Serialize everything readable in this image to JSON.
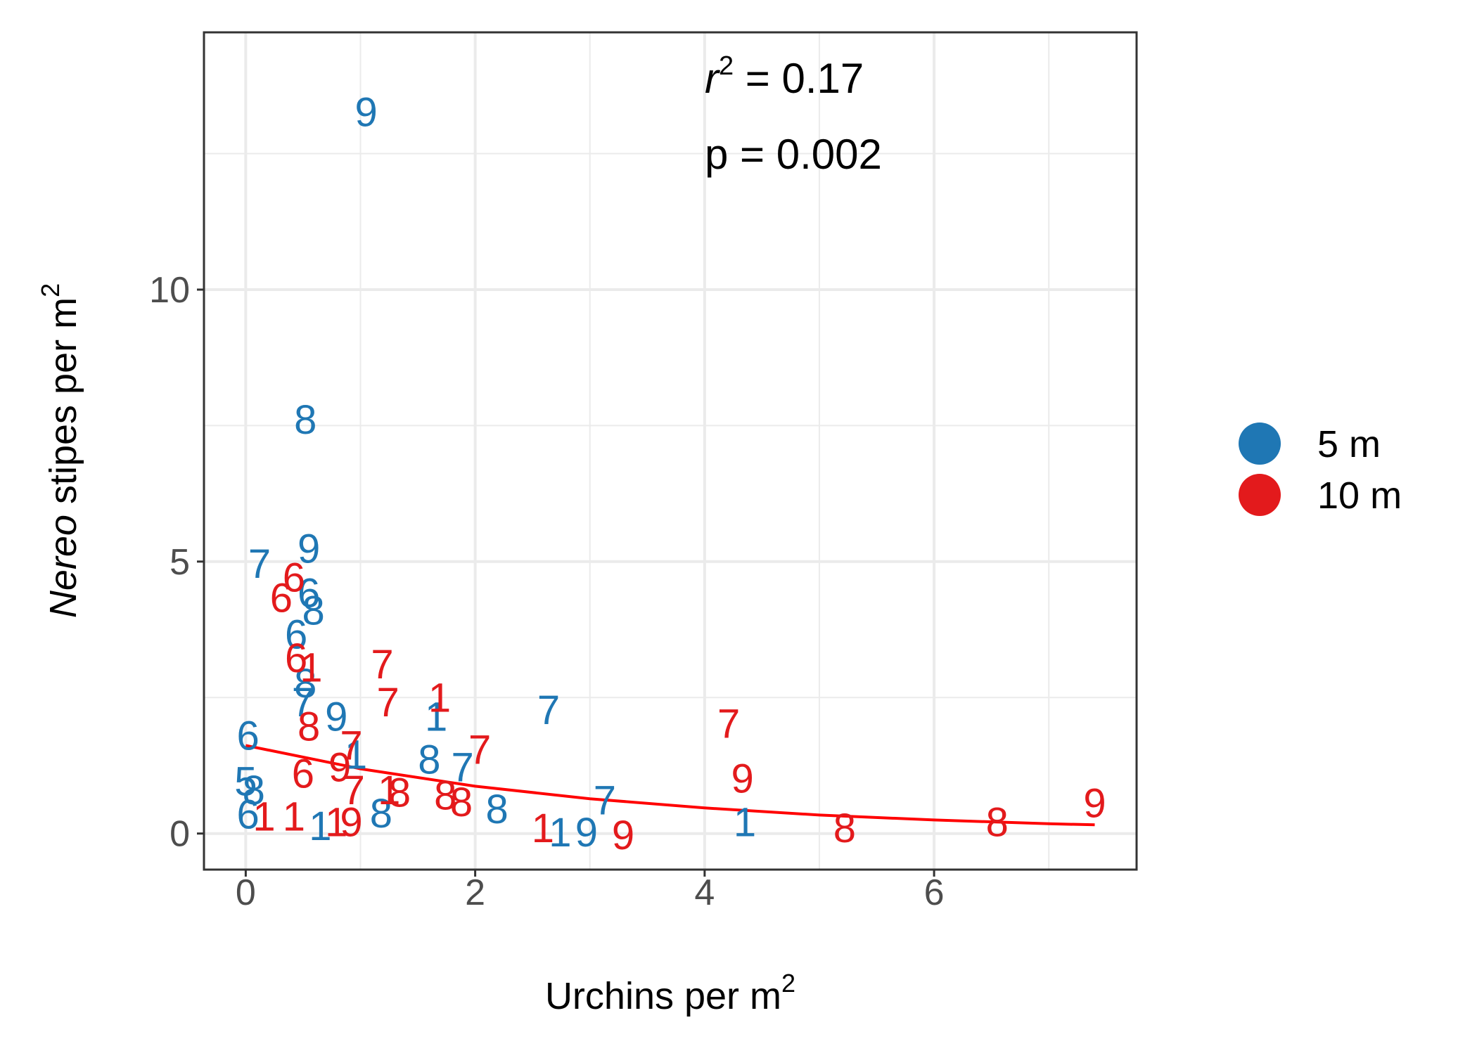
{
  "chart_data": {
    "type": "scatter",
    "x_label": {
      "text": "Urchins per m",
      "superscript": "2"
    },
    "y_label": {
      "italic": "Nereo",
      "text": " stipes per m",
      "superscript": "2"
    },
    "annotations": [
      {
        "italic": "r",
        "superscript": "2",
        "text": " = 0.17"
      },
      {
        "text": "p = 0.002"
      }
    ],
    "xlim": [
      -0.364,
      7.765
    ],
    "ylim": [
      -0.663,
      14.73
    ],
    "xticks": [
      0,
      2,
      4,
      6
    ],
    "yticks": [
      0,
      5,
      10
    ],
    "x_minor_ticks": [
      1,
      3,
      5,
      7
    ],
    "y_minor_ticks": [
      2.5,
      7.5,
      12.5
    ],
    "grid": true,
    "legend": "right",
    "series": [
      {
        "name": "5 m",
        "color": "#1f77b4",
        "x": [
          1.05,
          0.52,
          0.12,
          0.55,
          0.55,
          0.59,
          0.44,
          0.52,
          0.5,
          0.79,
          1.66,
          2.64,
          0.02,
          0.96,
          1.6,
          1.89,
          0,
          0.07,
          0.02,
          0.65,
          1.18,
          2.19,
          3.13,
          2.74,
          2.97,
          4.35
        ],
        "values": [
          13.26,
          7.61,
          4.96,
          5.24,
          4.42,
          4.1,
          3.66,
          2.76,
          2.41,
          2.15,
          2.15,
          2.27,
          1.8,
          1.45,
          1.36,
          1.22,
          0.96,
          0.8,
          0.35,
          0.14,
          0.37,
          0.45,
          0.61,
          0.02,
          0.02,
          0.21
        ],
        "labels": [
          "9",
          "8",
          "7",
          "9",
          "6",
          "8",
          "6",
          "8",
          "7",
          "9",
          "1",
          "7",
          "6",
          "1",
          "8",
          "7",
          "5",
          "8",
          "6",
          "1",
          "8",
          "8",
          "7",
          "1",
          "9",
          "1"
        ]
      },
      {
        "name": "10 m",
        "color": "#e31a1c",
        "x": [
          0.42,
          0.31,
          0.44,
          0.57,
          1.19,
          1.69,
          1.24,
          0.55,
          0.92,
          2.04,
          4.21,
          0.5,
          0.82,
          0.94,
          1.25,
          1.34,
          1.74,
          1.88,
          4.33,
          0.16,
          0.42,
          0.79,
          0.92,
          2.59,
          3.29,
          5.22,
          6.55,
          7.4
        ],
        "values": [
          4.71,
          4.33,
          3.23,
          3.05,
          3.11,
          2.5,
          2.41,
          1.97,
          1.62,
          1.54,
          2.02,
          1.1,
          1.22,
          0.8,
          0.8,
          0.75,
          0.7,
          0.58,
          1.01,
          0.31,
          0.31,
          0.21,
          0.21,
          0.1,
          -0.03,
          0.1,
          0.21,
          0.56
        ],
        "labels": [
          "6",
          "6",
          "6",
          "1",
          "7",
          "1",
          "7",
          "8",
          "7",
          "7",
          "7",
          "6",
          "9",
          "7",
          "1",
          "8",
          "8",
          "8",
          "9",
          "1",
          "1",
          "1",
          "9",
          "1",
          "9",
          "8",
          "8",
          "9"
        ]
      }
    ],
    "fit": {
      "color": "#ff0000",
      "x": [
        0,
        1,
        2,
        3,
        4,
        5,
        6,
        7,
        7.4
      ],
      "values": [
        1.62,
        1.19,
        0.87,
        0.64,
        0.47,
        0.34,
        0.25,
        0.18,
        0.16
      ]
    }
  }
}
